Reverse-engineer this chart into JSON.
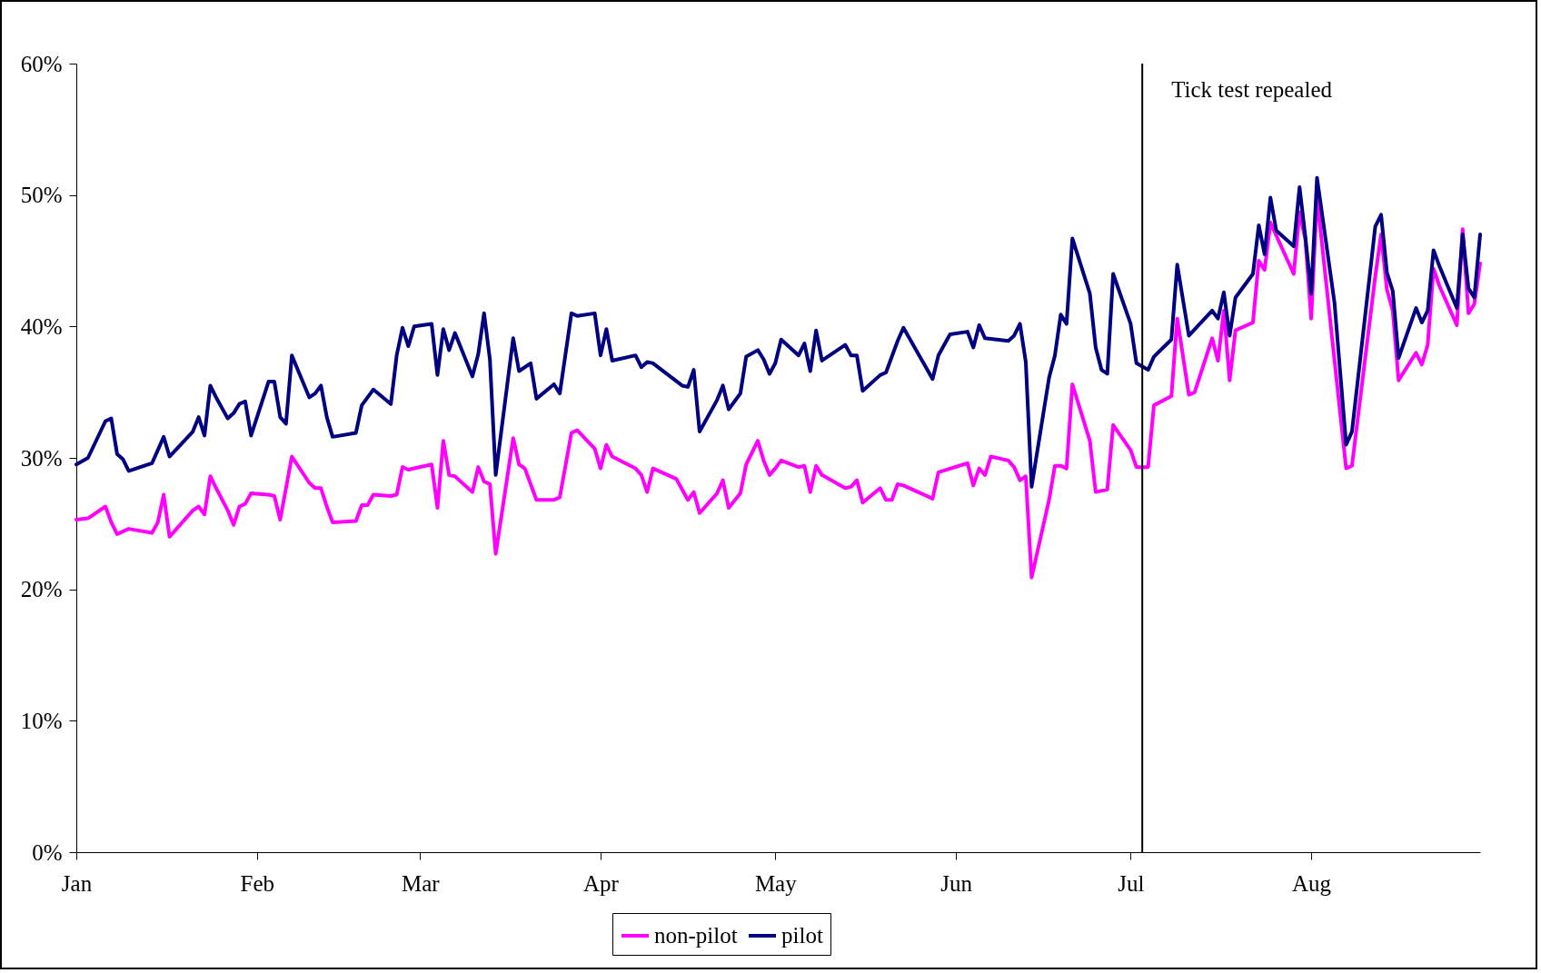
{
  "chart_data": {
    "type": "line",
    "legend": "bottom",
    "grid": false,
    "line_style": "solid",
    "marker": "none",
    "xlim": [
      "--01-01",
      "--08-30"
    ],
    "xticks": [
      {
        "value": "--01-01",
        "label": "Jan"
      },
      {
        "value": "--02-01",
        "label": "Feb"
      },
      {
        "value": "--03-01",
        "label": "Mar"
      },
      {
        "value": "--04-01",
        "label": "Apr"
      },
      {
        "value": "--05-01",
        "label": "May"
      },
      {
        "value": "--06-01",
        "label": "Jun"
      },
      {
        "value": "--07-01",
        "label": "Jul"
      },
      {
        "value": "--08-01",
        "label": "Aug"
      }
    ],
    "ylim": [
      0,
      60
    ],
    "yticks": [
      {
        "value": 0,
        "label": "0%"
      },
      {
        "value": 10,
        "label": "10%"
      },
      {
        "value": 20,
        "label": "20%"
      },
      {
        "value": 30,
        "label": "30%"
      },
      {
        "value": 40,
        "label": "40%"
      },
      {
        "value": 50,
        "label": "50%"
      },
      {
        "value": 60,
        "label": "60%"
      }
    ],
    "ref_lines": [
      {
        "axis": "x",
        "value": "--07-03",
        "color": "#000000"
      }
    ],
    "annotations": [
      {
        "text": "Tick test repealed",
        "x": "--07-03",
        "y": 58
      }
    ],
    "series": [
      {
        "name": "non-pilot",
        "color": "#ff00ff",
        "x": [
          "--01-01",
          "--01-03",
          "--01-06",
          "--01-07",
          "--01-08",
          "--01-10",
          "--01-14",
          "--01-15",
          "--01-16",
          "--01-17",
          "--01-21",
          "--01-22",
          "--01-23",
          "--01-24",
          "--01-25",
          "--01-27",
          "--01-28",
          "--01-29",
          "--01-30",
          "--01-31",
          "--02-03",
          "--02-04",
          "--02-05",
          "--02-07",
          "--02-10",
          "--02-11",
          "--02-12",
          "--02-13",
          "--02-14",
          "--02-18",
          "--02-19",
          "--02-20",
          "--02-21",
          "--02-24",
          "--02-25",
          "--02-26",
          "--02-27",
          "--02-28",
          "--03-03",
          "--03-04",
          "--03-05",
          "--03-06",
          "--03-07",
          "--03-10",
          "--03-11",
          "--03-12",
          "--03-13",
          "--03-14",
          "--03-17",
          "--03-18",
          "--03-19",
          "--03-21",
          "--03-24",
          "--03-25",
          "--03-27",
          "--03-28",
          "--03-31",
          "--04-01",
          "--04-02",
          "--04-03",
          "--04-07",
          "--04-08",
          "--04-09",
          "--04-10",
          "--04-14",
          "--04-15",
          "--04-16",
          "--04-17",
          "--04-18",
          "--04-21",
          "--04-22",
          "--04-23",
          "--04-25",
          "--04-26",
          "--04-28",
          "--04-29",
          "--04-30",
          "--05-01",
          "--05-02",
          "--05-05",
          "--05-06",
          "--05-07",
          "--05-08",
          "--05-09",
          "--05-13",
          "--05-14",
          "--05-15",
          "--05-16",
          "--05-19",
          "--05-20",
          "--05-21",
          "--05-22",
          "--05-23",
          "--05-28",
          "--05-29",
          "--06-03",
          "--06-04",
          "--06-05",
          "--06-06",
          "--06-07",
          "--06-10",
          "--06-11",
          "--06-12",
          "--06-13",
          "--06-14",
          "--06-17",
          "--06-18",
          "--06-19",
          "--06-20",
          "--06-21",
          "--06-24",
          "--06-25",
          "--06-27",
          "--06-28",
          "--07-01",
          "--07-02",
          "--07-04",
          "--07-05",
          "--07-08",
          "--07-09",
          "--07-11",
          "--07-12",
          "--07-15",
          "--07-16",
          "--07-17",
          "--07-18",
          "--07-19",
          "--07-22",
          "--07-23",
          "--07-24",
          "--07-25",
          "--07-29",
          "--07-30",
          "--07-31",
          "--08-01",
          "--08-02",
          "--08-07",
          "--08-08",
          "--08-12",
          "--08-13",
          "--08-14",
          "--08-15",
          "--08-16",
          "--08-19",
          "--08-20",
          "--08-21",
          "--08-22",
          "--08-23",
          "--08-26",
          "--08-27",
          "--08-28",
          "--08-29",
          "--08-30"
        ],
        "values": [
          25.3,
          25.4,
          26.3,
          25.1,
          24.2,
          24.6,
          24.3,
          25.1,
          27.2,
          24.0,
          26.0,
          26.3,
          25.7,
          28.6,
          27.7,
          26.0,
          24.9,
          26.3,
          26.5,
          27.3,
          27.2,
          27.1,
          25.3,
          30.1,
          28.1,
          27.7,
          27.7,
          26.3,
          25.1,
          25.2,
          26.4,
          26.4,
          27.2,
          27.1,
          27.2,
          29.3,
          29.1,
          29.2,
          29.5,
          26.2,
          31.3,
          28.7,
          28.6,
          27.4,
          29.3,
          28.2,
          28.0,
          22.7,
          31.5,
          29.5,
          29.2,
          26.8,
          26.8,
          27.0,
          31.9,
          32.1,
          30.7,
          29.2,
          31.0,
          30.1,
          29.2,
          28.7,
          27.4,
          29.2,
          28.4,
          27.6,
          26.8,
          27.4,
          25.8,
          27.3,
          28.3,
          26.2,
          27.3,
          29.5,
          31.3,
          29.8,
          28.7,
          29.2,
          29.8,
          29.3,
          29.4,
          27.4,
          29.4,
          28.7,
          27.7,
          27.8,
          28.3,
          26.6,
          27.7,
          26.8,
          26.8,
          28.0,
          27.9,
          26.9,
          28.9,
          29.6,
          27.9,
          29.2,
          28.7,
          30.1,
          29.8,
          29.3,
          28.3,
          28.6,
          20.9,
          26.8,
          29.4,
          29.4,
          29.2,
          35.6,
          31.3,
          27.4,
          27.6,
          32.5,
          30.6,
          29.3,
          29.3,
          34.0,
          34.7,
          40.6,
          34.8,
          35.0,
          39.1,
          37.4,
          41.2,
          35.9,
          39.7,
          40.3,
          45.0,
          44.3,
          47.9,
          44.0,
          48.7,
          46.6,
          40.6,
          49.8,
          29.2,
          29.4,
          43.8,
          47.0,
          42.8,
          41.2,
          35.9,
          38.0,
          37.1,
          38.6,
          44.4,
          43.1,
          40.1,
          47.4,
          41.0,
          41.7,
          44.8
        ]
      },
      {
        "name": "pilot",
        "color": "#000080",
        "x": [
          "--01-01",
          "--01-03",
          "--01-06",
          "--01-07",
          "--01-08",
          "--01-09",
          "--01-10",
          "--01-14",
          "--01-16",
          "--01-17",
          "--01-21",
          "--01-22",
          "--01-23",
          "--01-24",
          "--01-25",
          "--01-27",
          "--01-28",
          "--01-29",
          "--01-30",
          "--01-31",
          "--02-03",
          "--02-04",
          "--02-05",
          "--02-06",
          "--02-07",
          "--02-10",
          "--02-11",
          "--02-12",
          "--02-13",
          "--02-14",
          "--02-18",
          "--02-19",
          "--02-21",
          "--02-24",
          "--02-25",
          "--02-26",
          "--02-27",
          "--02-28",
          "--03-03",
          "--03-04",
          "--03-05",
          "--03-06",
          "--03-07",
          "--03-10",
          "--03-11",
          "--03-12",
          "--03-13",
          "--03-14",
          "--03-17",
          "--03-18",
          "--03-20",
          "--03-21",
          "--03-24",
          "--03-25",
          "--03-27",
          "--03-28",
          "--03-31",
          "--04-01",
          "--04-02",
          "--04-03",
          "--04-07",
          "--04-08",
          "--04-09",
          "--04-10",
          "--04-15",
          "--04-16",
          "--04-17",
          "--04-18",
          "--04-21",
          "--04-22",
          "--04-23",
          "--04-25",
          "--04-26",
          "--04-28",
          "--04-29",
          "--04-30",
          "--05-01",
          "--05-02",
          "--05-05",
          "--05-06",
          "--05-07",
          "--05-08",
          "--05-09",
          "--05-13",
          "--05-14",
          "--05-15",
          "--05-16",
          "--05-19",
          "--05-20",
          "--05-22",
          "--05-23",
          "--05-28",
          "--05-29",
          "--05-30",
          "--05-31",
          "--06-03",
          "--06-04",
          "--06-05",
          "--06-06",
          "--06-10",
          "--06-11",
          "--06-12",
          "--06-13",
          "--06-14",
          "--06-17",
          "--06-18",
          "--06-19",
          "--06-20",
          "--06-21",
          "--06-24",
          "--06-25",
          "--06-26",
          "--06-27",
          "--06-28",
          "--07-01",
          "--07-02",
          "--07-04",
          "--07-05",
          "--07-08",
          "--07-09",
          "--07-11",
          "--07-15",
          "--07-16",
          "--07-17",
          "--07-18",
          "--07-19",
          "--07-22",
          "--07-23",
          "--07-24",
          "--07-25",
          "--07-26",
          "--07-29",
          "--07-30",
          "--07-31",
          "--08-01",
          "--08-02",
          "--08-05",
          "--08-07",
          "--08-08",
          "--08-12",
          "--08-13",
          "--08-14",
          "--08-15",
          "--08-16",
          "--08-19",
          "--08-20",
          "--08-21",
          "--08-22",
          "--08-23",
          "--08-26",
          "--08-27",
          "--08-28",
          "--08-29",
          "--08-30"
        ],
        "values": [
          29.5,
          30.0,
          32.8,
          33.0,
          30.3,
          29.9,
          29.0,
          29.6,
          31.6,
          30.1,
          32.0,
          33.1,
          31.7,
          35.5,
          34.6,
          33.0,
          33.4,
          34.1,
          34.3,
          31.7,
          35.8,
          35.8,
          33.1,
          32.6,
          37.8,
          34.6,
          34.9,
          35.5,
          33.1,
          31.6,
          31.9,
          34.0,
          35.2,
          34.1,
          37.8,
          39.9,
          38.5,
          40.0,
          40.2,
          36.3,
          39.8,
          38.2,
          39.5,
          36.2,
          37.9,
          41.0,
          37.5,
          28.7,
          39.1,
          36.6,
          37.2,
          34.5,
          35.6,
          34.9,
          41.0,
          40.8,
          41.0,
          37.8,
          39.8,
          37.4,
          37.8,
          36.9,
          37.3,
          37.2,
          35.5,
          35.4,
          36.7,
          32.0,
          34.4,
          35.5,
          33.7,
          34.9,
          37.7,
          38.2,
          37.5,
          36.4,
          37.2,
          39.0,
          37.8,
          38.7,
          36.6,
          39.7,
          37.4,
          38.6,
          37.8,
          37.8,
          35.1,
          36.3,
          36.5,
          38.9,
          39.9,
          36.0,
          37.8,
          38.6,
          39.4,
          39.6,
          38.4,
          40.1,
          39.1,
          38.9,
          39.3,
          40.2,
          37.3,
          27.8,
          36.1,
          37.8,
          40.9,
          40.2,
          46.7,
          42.5,
          38.4,
          36.7,
          36.4,
          44.0,
          40.2,
          37.2,
          36.7,
          37.7,
          39.0,
          44.7,
          39.3,
          41.2,
          40.6,
          42.6,
          39.3,
          42.2,
          44.0,
          47.7,
          45.5,
          49.8,
          47.3,
          46.1,
          50.6,
          46.8,
          42.5,
          51.3,
          41.8,
          31.0,
          32.0,
          47.6,
          48.5,
          44.1,
          42.7,
          37.6,
          41.4,
          40.3,
          41.2,
          45.8,
          44.6,
          41.4,
          47.0,
          42.9,
          42.2,
          47.0
        ]
      }
    ]
  }
}
